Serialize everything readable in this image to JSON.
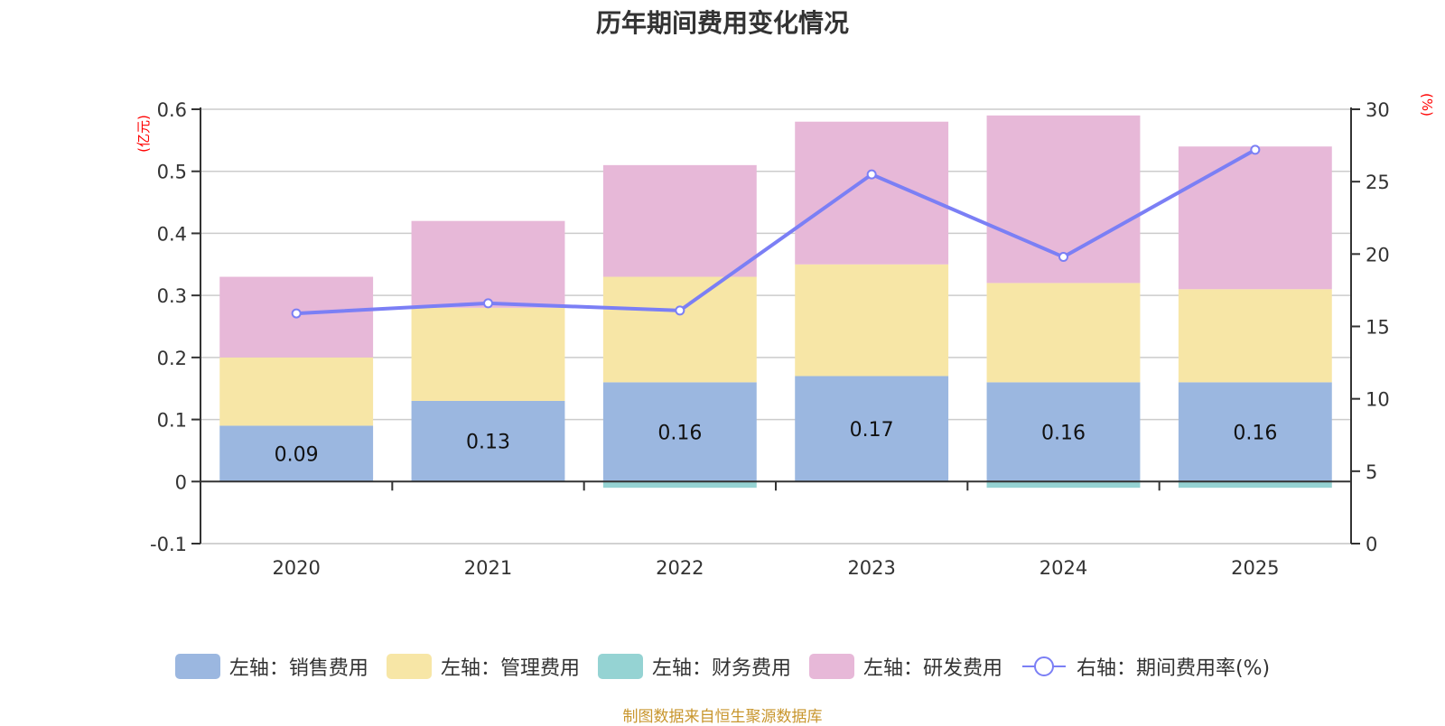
{
  "title": "历年期间费用变化情况",
  "source": "制图数据来自恒生聚源数据库",
  "colors": {
    "sales": "#9bb7e0",
    "admin": "#f7e6a6",
    "finance": "#95d3d3",
    "rd": "#e7b8d8",
    "rate": "#7b7ff5",
    "unit": "#ff0000",
    "source": "#c8962e"
  },
  "legend": [
    {
      "label": "左轴：销售费用",
      "key": "sales",
      "kind": "bar"
    },
    {
      "label": "左轴：管理费用",
      "key": "admin",
      "kind": "bar"
    },
    {
      "label": "左轴：财务费用",
      "key": "finance",
      "kind": "bar"
    },
    {
      "label": "左轴：研发费用",
      "key": "rd",
      "kind": "bar"
    },
    {
      "label": "右轴：期间费用率(%)",
      "key": "rate",
      "kind": "line"
    }
  ],
  "chart_data": {
    "type": "bar",
    "stacked": true,
    "title": "历年期间费用变化情况",
    "categories": [
      "2020",
      "2021",
      "2022",
      "2023",
      "2024",
      "2025"
    ],
    "left_axis": {
      "label": "(亿元)",
      "range": [
        -0.1,
        0.6
      ],
      "ticks": [
        "-0.1",
        "0",
        "0.1",
        "0.2",
        "0.3",
        "0.4",
        "0.5",
        "0.6"
      ]
    },
    "right_axis": {
      "label": "(%)",
      "range": [
        0,
        30
      ],
      "ticks": [
        "0",
        "5",
        "10",
        "15",
        "20",
        "25",
        "30"
      ]
    },
    "series": [
      {
        "name": "左轴：销售费用",
        "axis": "left",
        "type": "bar",
        "values": [
          0.09,
          0.13,
          0.16,
          0.17,
          0.16,
          0.16
        ],
        "labels": [
          "0.09",
          "0.13",
          "0.16",
          "0.17",
          "0.16",
          "0.16"
        ]
      },
      {
        "name": "左轴：管理费用",
        "axis": "left",
        "type": "bar",
        "values": [
          0.11,
          0.15,
          0.17,
          0.18,
          0.16,
          0.15
        ]
      },
      {
        "name": "左轴：财务费用",
        "axis": "left",
        "type": "bar",
        "values": [
          0.0,
          0.0,
          -0.01,
          0.0,
          -0.01,
          -0.01
        ]
      },
      {
        "name": "左轴：研发费用",
        "axis": "left",
        "type": "bar",
        "values": [
          0.13,
          0.14,
          0.18,
          0.23,
          0.27,
          0.23
        ]
      },
      {
        "name": "右轴：期间费用率(%)",
        "axis": "right",
        "type": "line",
        "values": [
          15.9,
          16.6,
          16.1,
          25.5,
          19.8,
          27.2
        ]
      }
    ],
    "grid": true,
    "legend_position": "bottom"
  }
}
